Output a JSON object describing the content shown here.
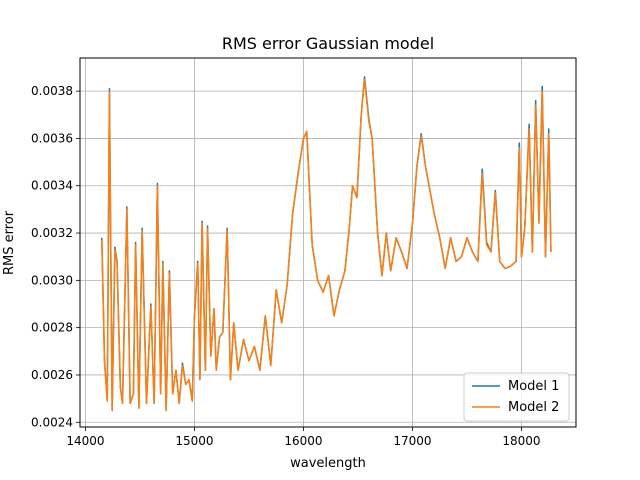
{
  "chart_data": {
    "type": "line",
    "title": "RMS error Gaussian model",
    "xlabel": "wavelength",
    "ylabel": "RMS error",
    "xlim": [
      13950,
      18500
    ],
    "ylim": [
      0.00238,
      0.00394
    ],
    "xticks": [
      14000,
      15000,
      16000,
      17000,
      18000
    ],
    "xtick_labels": [
      "14000",
      "15000",
      "16000",
      "17000",
      "18000"
    ],
    "yticks": [
      0.0024,
      0.0026,
      0.0028,
      0.003,
      0.0032,
      0.0034,
      0.0036,
      0.0038
    ],
    "ytick_labels": [
      "0.0024",
      "0.0026",
      "0.0028",
      "0.0030",
      "0.0032",
      "0.0034",
      "0.0036",
      "0.0038"
    ],
    "grid": true,
    "legend_position": "lower-right",
    "series": [
      {
        "name": "Model 1",
        "color": "#1f77b4",
        "points": [
          [
            14150,
            0.00318
          ],
          [
            14175,
            0.00266
          ],
          [
            14200,
            0.00249
          ],
          [
            14220,
            0.00381
          ],
          [
            14245,
            0.00245
          ],
          [
            14270,
            0.00314
          ],
          [
            14290,
            0.00308
          ],
          [
            14320,
            0.00255
          ],
          [
            14340,
            0.00248
          ],
          [
            14380,
            0.00331
          ],
          [
            14410,
            0.00248
          ],
          [
            14440,
            0.00252
          ],
          [
            14460,
            0.00316
          ],
          [
            14490,
            0.00246
          ],
          [
            14520,
            0.00322
          ],
          [
            14560,
            0.00248
          ],
          [
            14600,
            0.0029
          ],
          [
            14630,
            0.00248
          ],
          [
            14660,
            0.00341
          ],
          [
            14690,
            0.00252
          ],
          [
            14710,
            0.00308
          ],
          [
            14740,
            0.00245
          ],
          [
            14770,
            0.00304
          ],
          [
            14800,
            0.00252
          ],
          [
            14830,
            0.00262
          ],
          [
            14860,
            0.00248
          ],
          [
            14890,
            0.00265
          ],
          [
            14920,
            0.00256
          ],
          [
            14950,
            0.00258
          ],
          [
            14980,
            0.00249
          ],
          [
            15000,
            0.00285
          ],
          [
            15030,
            0.00308
          ],
          [
            15050,
            0.00258
          ],
          [
            15070,
            0.00325
          ],
          [
            15100,
            0.00262
          ],
          [
            15120,
            0.00323
          ],
          [
            15150,
            0.00268
          ],
          [
            15180,
            0.00288
          ],
          [
            15200,
            0.00262
          ],
          [
            15230,
            0.00276
          ],
          [
            15260,
            0.00278
          ],
          [
            15300,
            0.00322
          ],
          [
            15330,
            0.00258
          ],
          [
            15360,
            0.00282
          ],
          [
            15400,
            0.00262
          ],
          [
            15450,
            0.00275
          ],
          [
            15500,
            0.00266
          ],
          [
            15550,
            0.00272
          ],
          [
            15600,
            0.00262
          ],
          [
            15650,
            0.00285
          ],
          [
            15700,
            0.00264
          ],
          [
            15750,
            0.00296
          ],
          [
            15800,
            0.00282
          ],
          [
            15850,
            0.00298
          ],
          [
            15900,
            0.00328
          ],
          [
            15950,
            0.00345
          ],
          [
            16000,
            0.0036
          ],
          [
            16030,
            0.00363
          ],
          [
            16080,
            0.00315
          ],
          [
            16130,
            0.003
          ],
          [
            16180,
            0.00295
          ],
          [
            16230,
            0.00302
          ],
          [
            16280,
            0.00285
          ],
          [
            16330,
            0.00296
          ],
          [
            16380,
            0.00304
          ],
          [
            16420,
            0.00322
          ],
          [
            16450,
            0.0034
          ],
          [
            16490,
            0.00335
          ],
          [
            16530,
            0.0037
          ],
          [
            16560,
            0.00386
          ],
          [
            16600,
            0.00368
          ],
          [
            16630,
            0.0036
          ],
          [
            16680,
            0.0032
          ],
          [
            16720,
            0.00302
          ],
          [
            16760,
            0.0032
          ],
          [
            16800,
            0.00304
          ],
          [
            16850,
            0.00318
          ],
          [
            16900,
            0.00312
          ],
          [
            16950,
            0.00305
          ],
          [
            17000,
            0.00324
          ],
          [
            17040,
            0.00348
          ],
          [
            17080,
            0.00362
          ],
          [
            17120,
            0.00348
          ],
          [
            17160,
            0.00338
          ],
          [
            17200,
            0.00328
          ],
          [
            17250,
            0.00318
          ],
          [
            17300,
            0.00305
          ],
          [
            17350,
            0.00318
          ],
          [
            17400,
            0.00308
          ],
          [
            17450,
            0.0031
          ],
          [
            17500,
            0.00318
          ],
          [
            17550,
            0.00312
          ],
          [
            17600,
            0.00308
          ],
          [
            17640,
            0.00347
          ],
          [
            17680,
            0.00316
          ],
          [
            17720,
            0.00312
          ],
          [
            17760,
            0.00338
          ],
          [
            17800,
            0.00308
          ],
          [
            17850,
            0.00305
          ],
          [
            17900,
            0.00306
          ],
          [
            17950,
            0.00308
          ],
          [
            17980,
            0.00358
          ],
          [
            18000,
            0.0031
          ],
          [
            18030,
            0.00322
          ],
          [
            18070,
            0.00366
          ],
          [
            18100,
            0.00312
          ],
          [
            18130,
            0.00376
          ],
          [
            18160,
            0.00325
          ],
          [
            18190,
            0.00382
          ],
          [
            18220,
            0.0031
          ],
          [
            18250,
            0.00364
          ],
          [
            18270,
            0.00312
          ]
        ]
      },
      {
        "name": "Model 2",
        "color": "#ff7f0e",
        "points": [
          [
            14150,
            0.00317
          ],
          [
            14175,
            0.00265
          ],
          [
            14200,
            0.00249
          ],
          [
            14220,
            0.0038
          ],
          [
            14245,
            0.00245
          ],
          [
            14270,
            0.00313
          ],
          [
            14290,
            0.00307
          ],
          [
            14320,
            0.00255
          ],
          [
            14340,
            0.00248
          ],
          [
            14380,
            0.0033
          ],
          [
            14410,
            0.00248
          ],
          [
            14440,
            0.00252
          ],
          [
            14460,
            0.00315
          ],
          [
            14490,
            0.00246
          ],
          [
            14520,
            0.00321
          ],
          [
            14560,
            0.00248
          ],
          [
            14600,
            0.00289
          ],
          [
            14630,
            0.00248
          ],
          [
            14660,
            0.0034
          ],
          [
            14690,
            0.00252
          ],
          [
            14710,
            0.00307
          ],
          [
            14740,
            0.00245
          ],
          [
            14770,
            0.00303
          ],
          [
            14800,
            0.00252
          ],
          [
            14830,
            0.00262
          ],
          [
            14860,
            0.00248
          ],
          [
            14890,
            0.00264
          ],
          [
            14920,
            0.00256
          ],
          [
            14950,
            0.00258
          ],
          [
            14980,
            0.00249
          ],
          [
            15000,
            0.00285
          ],
          [
            15030,
            0.00307
          ],
          [
            15050,
            0.00258
          ],
          [
            15070,
            0.00324
          ],
          [
            15100,
            0.00262
          ],
          [
            15120,
            0.00322
          ],
          [
            15150,
            0.00268
          ],
          [
            15180,
            0.00288
          ],
          [
            15200,
            0.00262
          ],
          [
            15230,
            0.00276
          ],
          [
            15260,
            0.00278
          ],
          [
            15300,
            0.00321
          ],
          [
            15330,
            0.00258
          ],
          [
            15360,
            0.00282
          ],
          [
            15400,
            0.00262
          ],
          [
            15450,
            0.00275
          ],
          [
            15500,
            0.00266
          ],
          [
            15550,
            0.00272
          ],
          [
            15600,
            0.00262
          ],
          [
            15650,
            0.00285
          ],
          [
            15700,
            0.00264
          ],
          [
            15750,
            0.00296
          ],
          [
            15800,
            0.00282
          ],
          [
            15850,
            0.00298
          ],
          [
            15900,
            0.00328
          ],
          [
            15950,
            0.00345
          ],
          [
            16000,
            0.0036
          ],
          [
            16030,
            0.00363
          ],
          [
            16080,
            0.00315
          ],
          [
            16130,
            0.003
          ],
          [
            16180,
            0.00295
          ],
          [
            16230,
            0.00302
          ],
          [
            16280,
            0.00285
          ],
          [
            16330,
            0.00296
          ],
          [
            16380,
            0.00304
          ],
          [
            16420,
            0.00322
          ],
          [
            16450,
            0.0034
          ],
          [
            16490,
            0.00335
          ],
          [
            16530,
            0.0037
          ],
          [
            16560,
            0.00385
          ],
          [
            16600,
            0.00367
          ],
          [
            16630,
            0.0036
          ],
          [
            16680,
            0.0032
          ],
          [
            16720,
            0.00302
          ],
          [
            16760,
            0.0032
          ],
          [
            16800,
            0.00304
          ],
          [
            16850,
            0.00318
          ],
          [
            16900,
            0.00312
          ],
          [
            16950,
            0.00305
          ],
          [
            17000,
            0.00324
          ],
          [
            17040,
            0.00348
          ],
          [
            17080,
            0.00361
          ],
          [
            17120,
            0.00348
          ],
          [
            17160,
            0.00338
          ],
          [
            17200,
            0.00328
          ],
          [
            17250,
            0.00318
          ],
          [
            17300,
            0.00305
          ],
          [
            17350,
            0.00318
          ],
          [
            17400,
            0.00308
          ],
          [
            17450,
            0.0031
          ],
          [
            17500,
            0.00318
          ],
          [
            17550,
            0.00312
          ],
          [
            17600,
            0.00308
          ],
          [
            17640,
            0.00345
          ],
          [
            17680,
            0.00315
          ],
          [
            17720,
            0.00312
          ],
          [
            17760,
            0.00337
          ],
          [
            17800,
            0.00308
          ],
          [
            17850,
            0.00305
          ],
          [
            17900,
            0.00306
          ],
          [
            17950,
            0.00308
          ],
          [
            17980,
            0.00356
          ],
          [
            18000,
            0.0031
          ],
          [
            18030,
            0.00322
          ],
          [
            18070,
            0.00364
          ],
          [
            18100,
            0.00312
          ],
          [
            18130,
            0.00374
          ],
          [
            18160,
            0.00324
          ],
          [
            18190,
            0.0038
          ],
          [
            18220,
            0.0031
          ],
          [
            18250,
            0.00362
          ],
          [
            18270,
            0.00312
          ]
        ]
      }
    ]
  }
}
